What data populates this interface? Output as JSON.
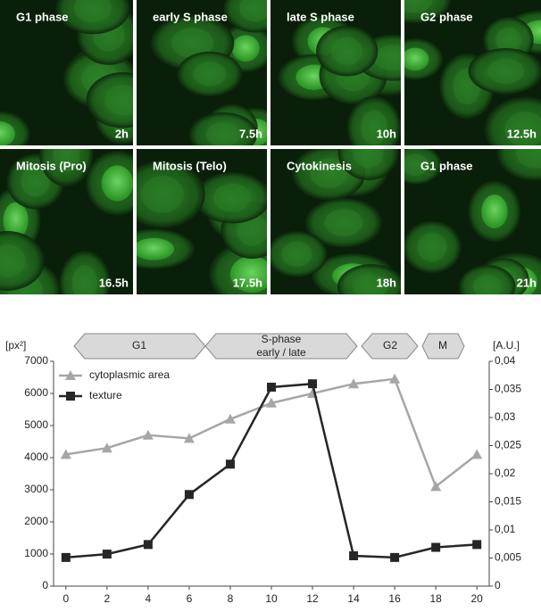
{
  "panels": [
    {
      "label": "G1 phase",
      "time": "2h"
    },
    {
      "label": "early S phase",
      "time": "7.5h"
    },
    {
      "label": "late S phase",
      "time": "10h"
    },
    {
      "label": "G2 phase",
      "time": "12.5h"
    },
    {
      "label": "Mitosis (Pro)",
      "time": "16.5h"
    },
    {
      "label": "Mitosis (Telo)",
      "time": "17.5h"
    },
    {
      "label": "Cytokinesis",
      "time": "18h"
    },
    {
      "label": "G1 phase",
      "time": "21h"
    }
  ],
  "chart_data": {
    "type": "line",
    "phases": [
      "G1",
      "S-phase",
      "early / late",
      "G2",
      "M"
    ],
    "y_label": "[px²]",
    "y2_label": "[A.U.]",
    "x": [
      0,
      2,
      4,
      6,
      8,
      10,
      12,
      14,
      16,
      18,
      20
    ],
    "xlim": [
      -0.6,
      20.6
    ],
    "xticks": [
      0,
      2,
      4,
      6,
      8,
      10,
      12,
      14,
      16,
      18,
      20
    ],
    "ylim": [
      0,
      7000
    ],
    "yticks": [
      0,
      1000,
      2000,
      3000,
      4000,
      5000,
      6000,
      7000
    ],
    "y2lim": [
      0,
      0.04
    ],
    "y2ticks": [
      0,
      {
        "value": 0.005,
        "label": "0,005"
      },
      {
        "value": 0.01,
        "label": "0,01"
      },
      {
        "value": 0.015,
        "label": "0,015"
      },
      {
        "value": 0.02,
        "label": "0,02"
      },
      {
        "value": 0.025,
        "label": "0,025"
      },
      {
        "value": 0.03,
        "label": "0,03"
      },
      {
        "value": 0.035,
        "label": "0,035"
      },
      {
        "value": 0.04,
        "label": "0,04"
      }
    ],
    "series": [
      {
        "name": "cytoplasmic area",
        "color": "#a6a6a6",
        "marker": "triangle",
        "values": [
          4100,
          4300,
          4700,
          4600,
          5200,
          5700,
          6000,
          6300,
          6450,
          3100,
          4100
        ]
      },
      {
        "name": "texture",
        "color": "#262626",
        "marker": "square",
        "axis": "y2",
        "values": [
          0.0051,
          0.0057,
          0.0074,
          0.0163,
          0.0217,
          0.0354,
          0.036,
          0.0054,
          0.0051,
          0.0069,
          0.0074
        ]
      }
    ]
  }
}
